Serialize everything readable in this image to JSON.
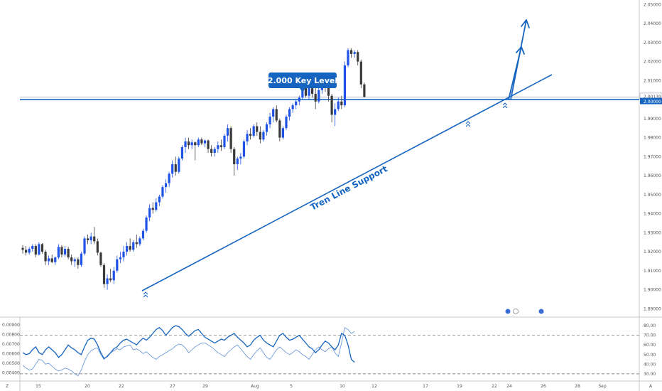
{
  "chart_data": {
    "type": "candlestick",
    "colors": {
      "up": "#1e53e5",
      "down": "#3a3a3a",
      "line": "#1565c0",
      "osc_dark": "#1565c0",
      "osc_light": "#5b8fd6",
      "badge": "#1565c0"
    },
    "price_axis": {
      "ylim": [
        1.8875,
        2.0505
      ],
      "ticks": [
        "2.05000",
        "2.04000",
        "2.03000",
        "2.02000",
        "2.01000",
        "2.00000",
        "1.99000",
        "1.98000",
        "1.97000",
        "1.96000",
        "1.95000",
        "1.94000",
        "1.93000",
        "1.92000",
        "1.91000",
        "1.90000",
        "1.89000"
      ]
    },
    "osc_left_axis": {
      "ylim": [
        0.0033,
        0.0095
      ],
      "ticks": [
        "0.00900",
        "0.00800",
        "0.00700",
        "0.00600",
        "0.00500",
        "0.00400"
      ]
    },
    "osc_right_axis": {
      "ylim": [
        24,
        86
      ],
      "ticks": [
        "80.00",
        "70.00",
        "60.00",
        "50.00",
        "40.00",
        "30.00"
      ],
      "levels": [
        70,
        30
      ]
    },
    "x_axis": {
      "labels": [
        "15",
        "20",
        "22",
        "27",
        "29",
        "Aug",
        "5",
        "10",
        "12",
        "17",
        "19",
        "22",
        "24",
        "26",
        "28",
        "Sep"
      ]
    },
    "last_price_label": "2.00139",
    "level_label": "2.00000",
    "annotations": {
      "key_level": "2.000 Key Level",
      "trendline": "Tren Line Support"
    },
    "corner_labels": {
      "left": "Z",
      "right": "A"
    },
    "candles": [
      [
        1.922,
        1.9235,
        1.919,
        1.921
      ],
      [
        1.921,
        1.923,
        1.918,
        1.9195
      ],
      [
        1.9195,
        1.9225,
        1.9185,
        1.9215
      ],
      [
        1.9215,
        1.924,
        1.92,
        1.923
      ],
      [
        1.923,
        1.924,
        1.917,
        1.9185
      ],
      [
        1.9185,
        1.925,
        1.918,
        1.924
      ],
      [
        1.924,
        1.9245,
        1.919,
        1.92
      ],
      [
        1.92,
        1.921,
        1.913,
        1.915
      ],
      [
        1.915,
        1.918,
        1.913,
        1.9165
      ],
      [
        1.9165,
        1.9185,
        1.914,
        1.9145
      ],
      [
        1.9145,
        1.9175,
        1.913,
        1.917
      ],
      [
        1.917,
        1.924,
        1.916,
        1.9225
      ],
      [
        1.9225,
        1.9235,
        1.917,
        1.9185
      ],
      [
        1.9185,
        1.923,
        1.9175,
        1.9215
      ],
      [
        1.9215,
        1.9225,
        1.916,
        1.917
      ],
      [
        1.917,
        1.9185,
        1.913,
        1.915
      ],
      [
        1.915,
        1.917,
        1.912,
        1.916
      ],
      [
        1.916,
        1.917,
        1.911,
        1.913
      ],
      [
        1.913,
        1.92,
        1.912,
        1.919
      ],
      [
        1.919,
        1.928,
        1.918,
        1.927
      ],
      [
        1.927,
        1.929,
        1.924,
        1.926
      ],
      [
        1.926,
        1.93,
        1.924,
        1.928
      ],
      [
        1.928,
        1.933,
        1.924,
        1.9255
      ],
      [
        1.9255,
        1.927,
        1.918,
        1.9195
      ],
      [
        1.9195,
        1.92,
        1.912,
        1.913
      ],
      [
        1.913,
        1.914,
        1.901,
        1.903
      ],
      [
        1.903,
        1.908,
        1.9,
        1.906
      ],
      [
        1.906,
        1.911,
        1.904,
        1.905
      ],
      [
        1.905,
        1.912,
        1.903,
        1.91
      ],
      [
        1.91,
        1.918,
        1.909,
        1.916
      ],
      [
        1.916,
        1.92,
        1.914,
        1.917
      ],
      [
        1.917,
        1.923,
        1.915,
        1.92
      ],
      [
        1.92,
        1.925,
        1.918,
        1.923
      ],
      [
        1.923,
        1.927,
        1.92,
        1.921
      ],
      [
        1.921,
        1.926,
        1.92,
        1.925
      ],
      [
        1.925,
        1.929,
        1.922,
        1.924
      ],
      [
        1.924,
        1.928,
        1.923,
        1.927
      ],
      [
        1.927,
        1.932,
        1.926,
        1.931
      ],
      [
        1.931,
        1.939,
        1.93,
        1.938
      ],
      [
        1.938,
        1.945,
        1.936,
        1.943
      ],
      [
        1.943,
        1.946,
        1.94,
        1.942
      ],
      [
        1.942,
        1.948,
        1.941,
        1.946
      ],
      [
        1.946,
        1.95,
        1.944,
        1.949
      ],
      [
        1.949,
        1.955,
        1.948,
        1.954
      ],
      [
        1.954,
        1.958,
        1.951,
        1.956
      ],
      [
        1.956,
        1.962,
        1.954,
        1.961
      ],
      [
        1.961,
        1.968,
        1.959,
        1.966
      ],
      [
        1.966,
        1.97,
        1.96,
        1.962
      ],
      [
        1.962,
        1.97,
        1.961,
        1.969
      ],
      [
        1.969,
        1.976,
        1.968,
        1.975
      ],
      [
        1.975,
        1.98,
        1.972,
        1.978
      ],
      [
        1.978,
        1.98,
        1.974,
        1.976
      ],
      [
        1.976,
        1.979,
        1.974,
        1.9775
      ],
      [
        1.9775,
        1.978,
        1.968,
        1.976
      ],
      [
        1.976,
        1.98,
        1.975,
        1.979
      ],
      [
        1.979,
        1.98,
        1.976,
        1.977
      ],
      [
        1.977,
        1.979,
        1.975,
        1.9785
      ],
      [
        1.9785,
        1.979,
        1.972,
        1.974
      ],
      [
        1.974,
        1.976,
        1.97,
        1.972
      ],
      [
        1.972,
        1.975,
        1.97,
        1.974
      ],
      [
        1.974,
        1.978,
        1.972,
        1.976
      ],
      [
        1.976,
        1.979,
        1.973,
        1.975
      ],
      [
        1.975,
        1.982,
        1.974,
        1.981
      ],
      [
        1.981,
        1.987,
        1.978,
        1.985
      ],
      [
        1.985,
        1.986,
        1.972,
        1.974
      ],
      [
        1.974,
        1.975,
        1.96,
        1.966
      ],
      [
        1.966,
        1.97,
        1.963,
        1.969
      ],
      [
        1.969,
        1.972,
        1.966,
        1.97
      ],
      [
        1.97,
        1.979,
        1.969,
        1.978
      ],
      [
        1.978,
        1.984,
        1.976,
        1.982
      ],
      [
        1.982,
        1.985,
        1.979,
        1.981
      ],
      [
        1.981,
        1.987,
        1.98,
        1.986
      ],
      [
        1.986,
        1.988,
        1.981,
        1.983
      ],
      [
        1.983,
        1.986,
        1.977,
        1.979
      ],
      [
        1.979,
        1.984,
        1.978,
        1.983
      ],
      [
        1.983,
        1.988,
        1.981,
        1.987
      ],
      [
        1.987,
        1.993,
        1.985,
        1.991
      ],
      [
        1.991,
        1.996,
        1.988,
        1.995
      ],
      [
        1.995,
        1.997,
        1.988,
        1.989
      ],
      [
        1.989,
        1.99,
        1.978,
        1.98
      ],
      [
        1.98,
        1.986,
        1.979,
        1.985
      ],
      [
        1.985,
        1.992,
        1.984,
        1.991
      ],
      [
        1.991,
        1.996,
        1.989,
        1.995
      ],
      [
        1.995,
        1.998,
        1.993,
        1.997
      ],
      [
        1.997,
        2.0,
        1.995,
        1.999
      ],
      [
        1.999,
        2.002,
        1.997,
        2.001
      ],
      [
        2.001,
        2.007,
        2.0,
        2.006
      ],
      [
        2.006,
        2.007,
        2.001,
        2.002
      ],
      [
        2.002,
        2.007,
        2.0,
        2.006
      ],
      [
        2.006,
        2.007,
        2.001,
        2.003
      ],
      [
        2.003,
        2.006,
        1.995,
        1.999
      ],
      [
        1.999,
        2.007,
        1.998,
        2.005
      ],
      [
        2.005,
        2.011,
        2.003,
        2.008
      ],
      [
        2.008,
        2.011,
        2.004,
        2.006
      ],
      [
        2.006,
        2.008,
        1.999,
        2.002
      ],
      [
        2.002,
        2.003,
        1.988,
        1.992
      ],
      [
        1.992,
        1.998,
        1.986,
        1.995
      ],
      [
        1.995,
        2.001,
        1.994,
        1.999
      ],
      [
        1.999,
        2.002,
        1.995,
        1.997
      ],
      [
        1.997,
        2.02,
        1.996,
        2.018
      ],
      [
        2.018,
        2.027,
        2.017,
        2.026
      ],
      [
        2.026,
        2.027,
        2.022,
        2.024
      ],
      [
        2.024,
        2.026,
        2.022,
        2.025
      ],
      [
        2.025,
        2.026,
        2.018,
        2.02
      ],
      [
        2.02,
        2.021,
        2.006,
        2.008
      ],
      [
        2.008,
        2.009,
        2.001,
        2.0014
      ]
    ],
    "osc_light": [
      39,
      36,
      34,
      35,
      40,
      45,
      44,
      40,
      41,
      38,
      35,
      33,
      34,
      36,
      35,
      33,
      30,
      28,
      34,
      43,
      50,
      54,
      56,
      57,
      50,
      45,
      49,
      52,
      54,
      56,
      55,
      58,
      59,
      60,
      55,
      56,
      54,
      51,
      53,
      50,
      47,
      45,
      48,
      50,
      52,
      54,
      56,
      59,
      61,
      60,
      57,
      52,
      55,
      58,
      60,
      62,
      62,
      60,
      58,
      55,
      52,
      50,
      48,
      52,
      55,
      58,
      60,
      56,
      52,
      48,
      45,
      50,
      54,
      57,
      52,
      47,
      45,
      50,
      55,
      58,
      55,
      52,
      50,
      52,
      55,
      53,
      50,
      48,
      45,
      50,
      55,
      58,
      55,
      53,
      56,
      58,
      52,
      48,
      62,
      78,
      76,
      72,
      74
    ],
    "osc_dark": [
      52,
      50,
      51,
      55,
      58,
      52,
      50,
      55,
      58,
      55,
      52,
      47,
      50,
      55,
      60,
      57,
      55,
      52,
      50,
      58,
      65,
      67,
      66,
      60,
      52,
      46,
      48,
      52,
      56,
      58,
      62,
      65,
      66,
      64,
      62,
      60,
      64,
      67,
      65,
      68,
      72,
      76,
      78,
      75,
      70,
      74,
      78,
      80,
      79,
      76,
      72,
      69,
      72,
      75,
      76,
      72,
      68,
      66,
      64,
      62,
      64,
      66,
      65,
      68,
      70,
      72,
      68,
      65,
      62,
      58,
      60,
      65,
      68,
      70,
      65,
      62,
      60,
      58,
      64,
      70,
      72,
      68,
      65,
      66,
      68,
      70,
      66,
      62,
      58,
      56,
      52,
      55,
      60,
      64,
      62,
      58,
      55,
      60,
      72,
      70,
      60,
      45,
      42
    ]
  }
}
